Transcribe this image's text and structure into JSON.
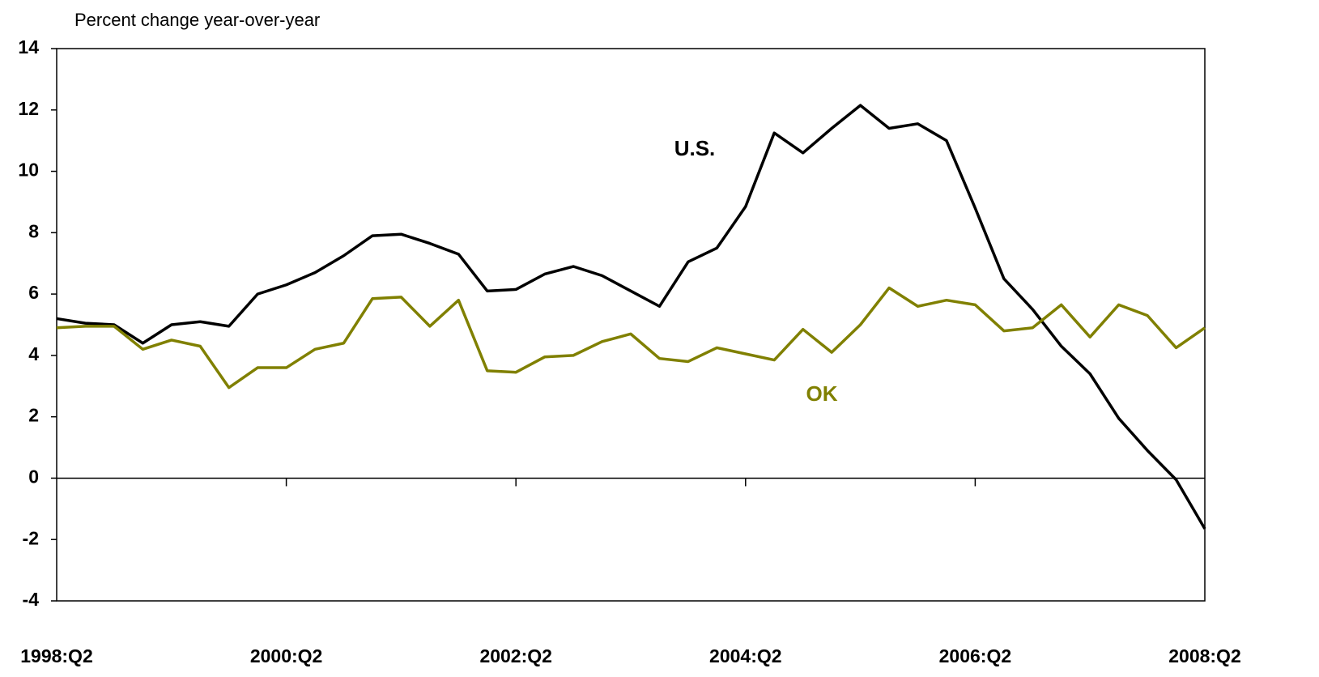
{
  "chart_data": {
    "type": "line",
    "y_label": "Percent change year-over-year",
    "categories": [
      "1998:Q2",
      null,
      null,
      null,
      null,
      null,
      null,
      null,
      "2000:Q2",
      null,
      null,
      null,
      null,
      null,
      null,
      null,
      "2002:Q2",
      null,
      null,
      null,
      null,
      null,
      null,
      null,
      "2004:Q2",
      null,
      null,
      null,
      null,
      null,
      null,
      null,
      "2006:Q2",
      null,
      null,
      null,
      null,
      null,
      null,
      null,
      "2008:Q2"
    ],
    "series": [
      {
        "name": "U.S.",
        "color": "#000000",
        "values": [
          5.2,
          5.05,
          5.0,
          4.4,
          5.0,
          5.1,
          4.95,
          6.0,
          6.3,
          6.7,
          7.25,
          7.9,
          7.95,
          7.65,
          7.3,
          6.1,
          6.15,
          6.65,
          6.9,
          6.6,
          6.1,
          5.6,
          7.05,
          7.5,
          8.85,
          11.25,
          10.6,
          11.4,
          12.15,
          11.4,
          11.55,
          11.0,
          8.8,
          6.5,
          5.5,
          4.3,
          3.4,
          1.95,
          0.9,
          -0.05,
          -1.65
        ]
      },
      {
        "name": "OK",
        "color": "#808000",
        "values": [
          4.9,
          4.95,
          4.95,
          4.2,
          4.5,
          4.3,
          2.95,
          3.6,
          3.6,
          4.2,
          4.4,
          5.85,
          5.9,
          4.95,
          5.8,
          3.5,
          3.45,
          3.95,
          4.0,
          4.45,
          4.7,
          3.9,
          3.8,
          4.25,
          4.05,
          3.85,
          4.85,
          4.1,
          5.0,
          6.2,
          5.6,
          5.8,
          5.65,
          4.8,
          4.9,
          5.65,
          4.6,
          5.65,
          5.3,
          4.25,
          4.9
        ]
      }
    ],
    "ylim": [
      -4,
      14
    ],
    "yticks": [
      -4,
      -2,
      0,
      2,
      4,
      6,
      8,
      10,
      12,
      14
    ]
  }
}
